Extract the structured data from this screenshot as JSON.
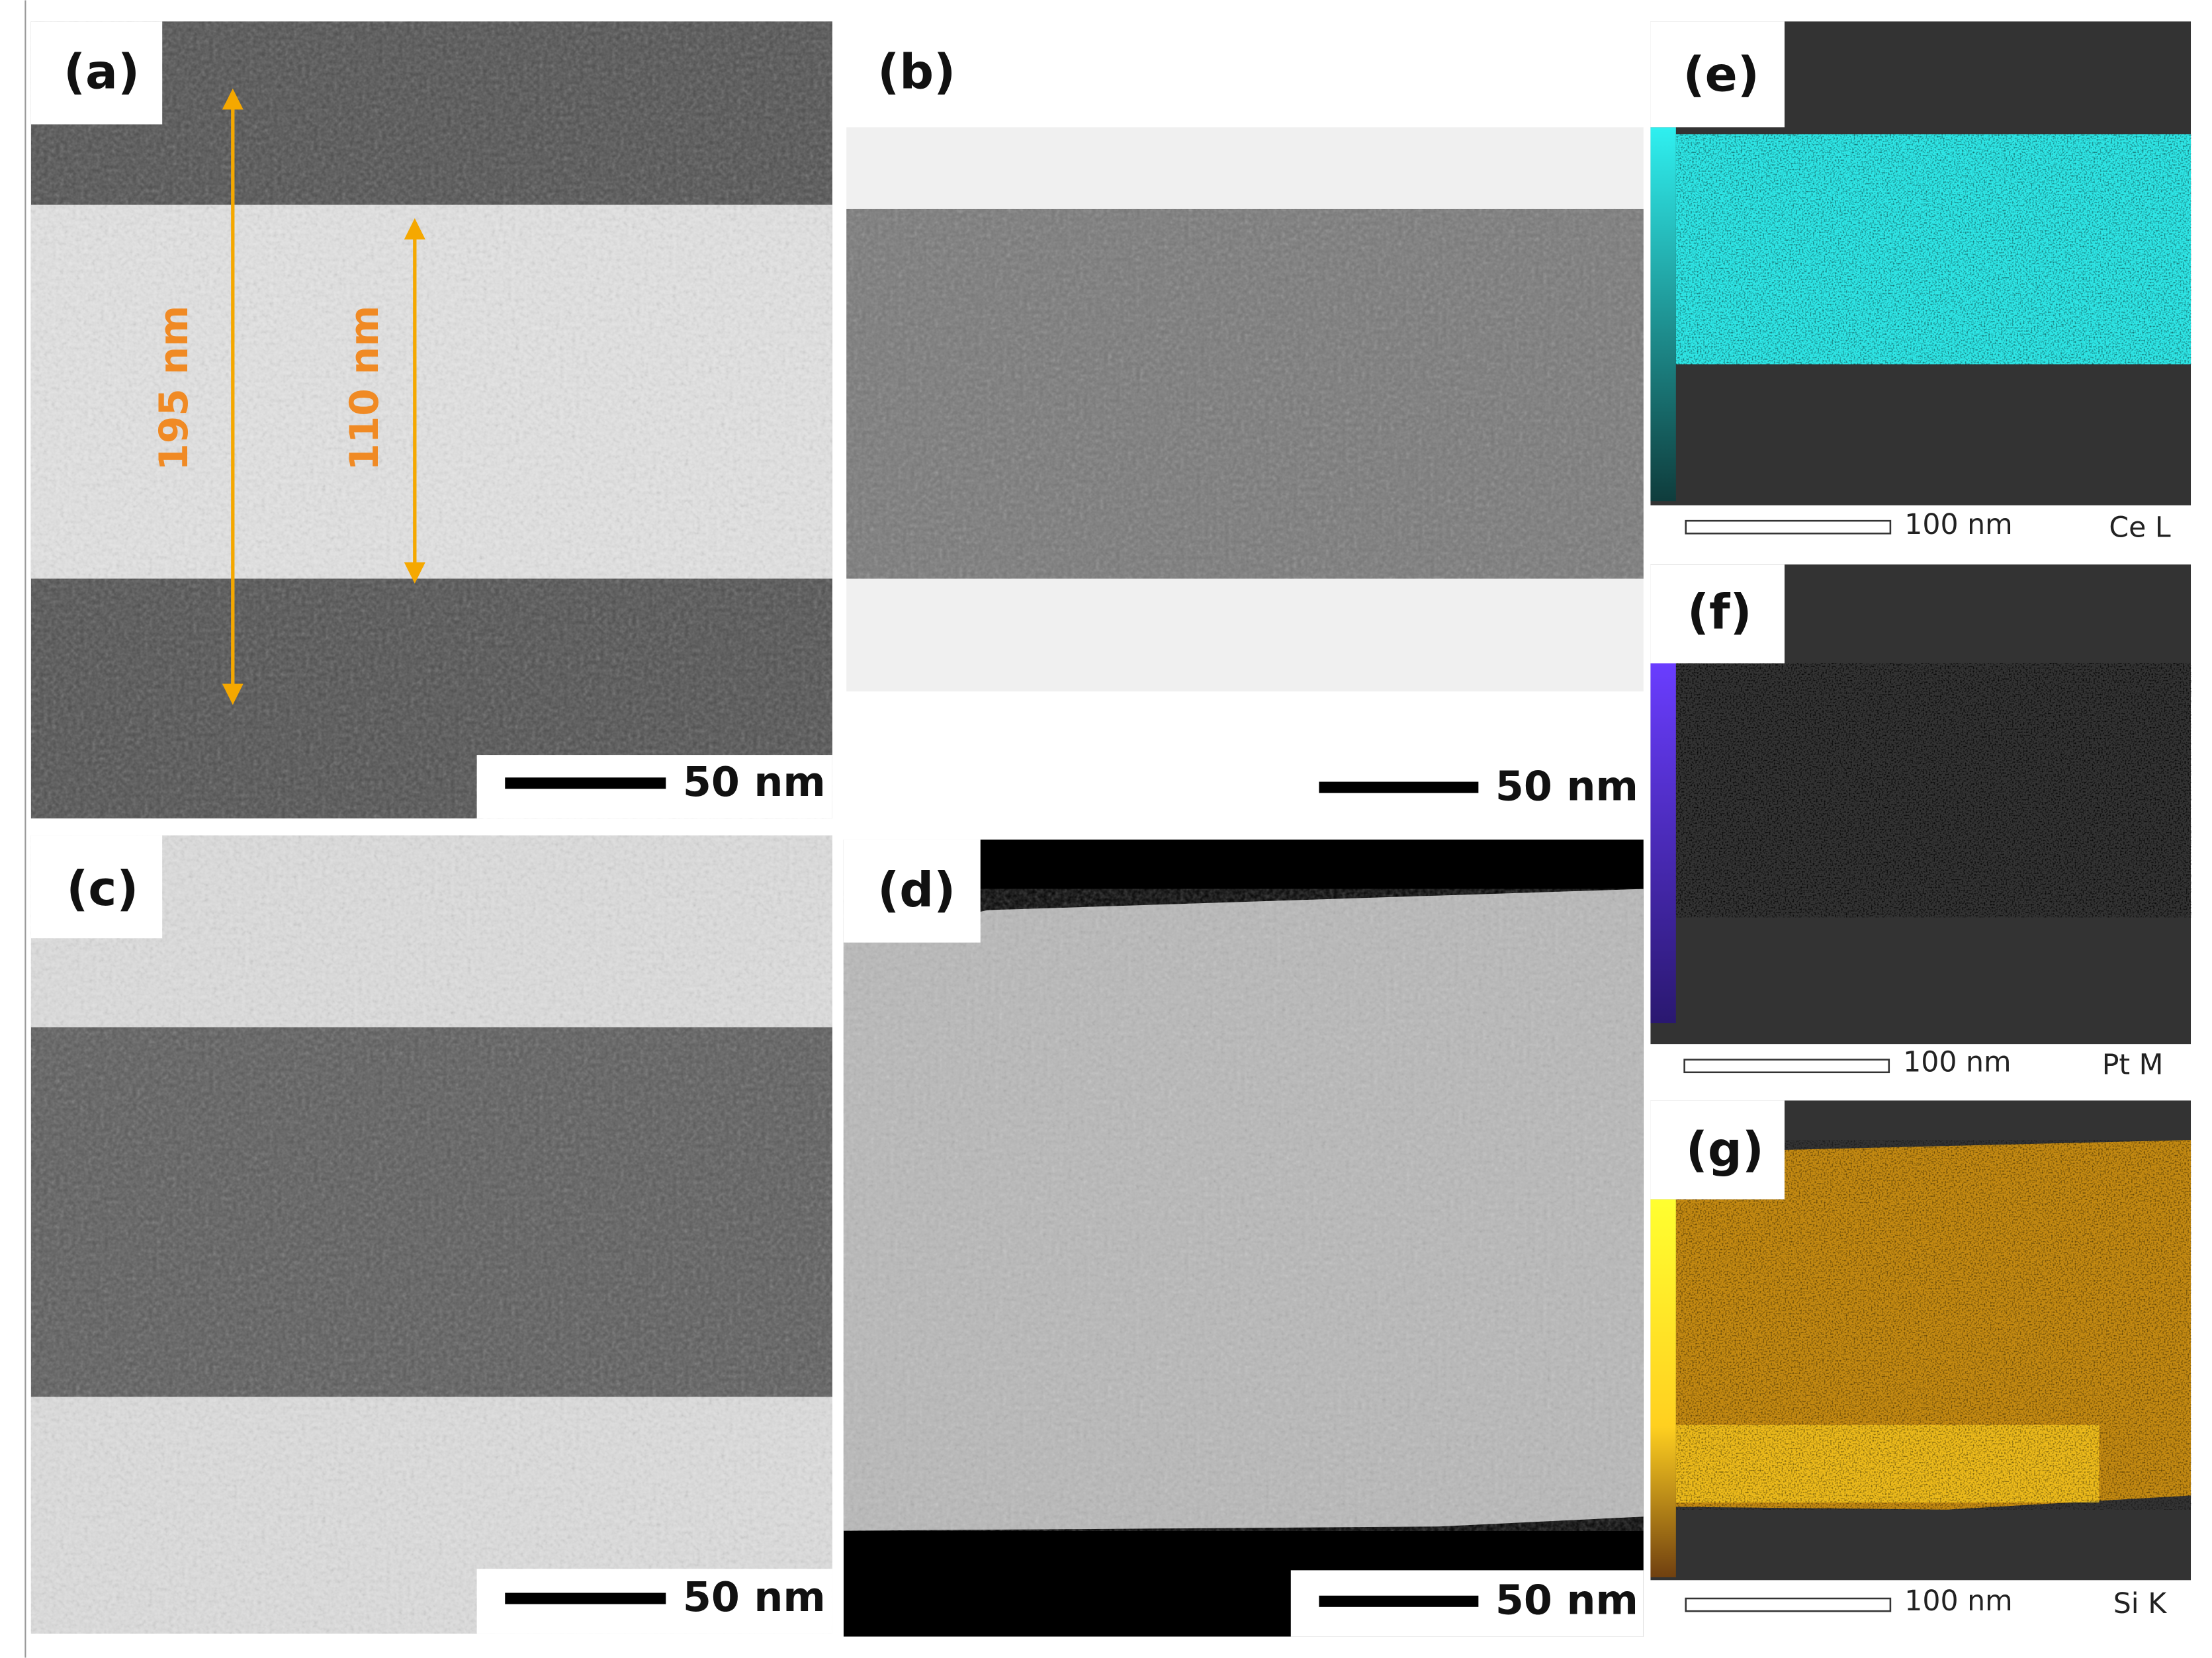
{
  "panels": [
    {
      "label": "(a)",
      "scale_bar": "50 nm",
      "annotations": [
        "195 nm",
        "110 nm"
      ]
    },
    {
      "label": "(b)",
      "scale_bar": "50 nm"
    },
    {
      "label": "(c)",
      "scale_bar": "50 nm"
    },
    {
      "label": "(d)",
      "scale_bar": "50 nm"
    },
    {
      "label": "(e)",
      "scale_bar": "100 nm",
      "element": "Ce L"
    },
    {
      "label": "(f)",
      "scale_bar": "100 nm",
      "element": "Pt M"
    },
    {
      "label": "(g)",
      "scale_bar": "100 nm",
      "element": "Si K"
    }
  ]
}
